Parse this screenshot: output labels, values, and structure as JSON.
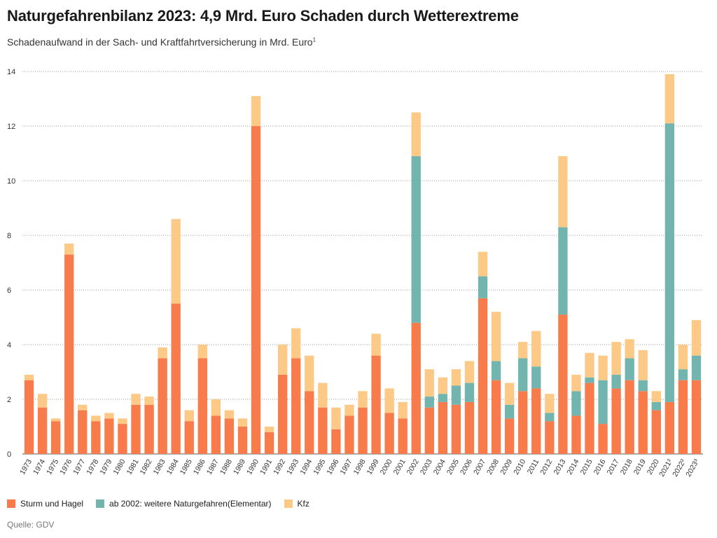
{
  "header": {
    "title": "Naturgefahrenbilanz 2023:  4,9 Mrd. Euro Schaden durch Wetterextreme",
    "subtitle": "Schadenaufwand in der Sach- und Kraftfahrtversicherung in Mrd. Euro",
    "subtitle_note": "1"
  },
  "source": "Quelle: GDV",
  "colors": {
    "sturm": "#f77b4b",
    "elementar": "#72b5ae",
    "kfz": "#fcca86",
    "grid": "#9a9a9a",
    "text": "#1a1a1a"
  },
  "chart_data": {
    "type": "bar",
    "stacked": true,
    "title": "Naturgefahrenbilanz 2023:  4,9 Mrd. Euro Schaden durch Wetterextreme",
    "ylabel": "",
    "xlabel": "",
    "ylim": [
      0,
      14
    ],
    "yticks": [
      0,
      2,
      4,
      6,
      8,
      10,
      12,
      14
    ],
    "grid": true,
    "legend_position": "bottom-left",
    "categories": [
      "1973",
      "1974",
      "1975",
      "1976",
      "1977",
      "1978",
      "1979",
      "1980",
      "1981",
      "1982",
      "1983",
      "1984",
      "1985",
      "1986",
      "1987",
      "1988",
      "1989",
      "1990",
      "1991",
      "1992",
      "1993",
      "1994",
      "1995",
      "1996",
      "1997",
      "1998",
      "1999",
      "2000",
      "2001",
      "2002",
      "2003",
      "2004",
      "2005",
      "2006",
      "2007",
      "2008",
      "2009",
      "2010",
      "2011",
      "2012",
      "2013",
      "2014",
      "2015",
      "2016",
      "2017",
      "2018",
      "2019",
      "2020",
      "2021²",
      "2022²",
      "2023³"
    ],
    "series": [
      {
        "name": "Sturm und Hagel",
        "color": "#f77b4b",
        "values": [
          2.7,
          1.7,
          1.2,
          7.3,
          1.6,
          1.2,
          1.3,
          1.1,
          1.8,
          1.8,
          3.5,
          5.5,
          1.2,
          3.5,
          1.4,
          1.3,
          1.0,
          12.0,
          0.8,
          2.9,
          3.5,
          2.3,
          1.7,
          0.9,
          1.4,
          1.7,
          3.6,
          1.5,
          1.3,
          4.8,
          1.7,
          1.9,
          1.8,
          1.9,
          5.7,
          2.7,
          1.3,
          2.3,
          2.4,
          1.2,
          5.1,
          1.4,
          2.6,
          1.1,
          2.4,
          2.7,
          2.3,
          1.6,
          1.9,
          2.7,
          2.7
        ]
      },
      {
        "name": "ab 2002: weitere Naturgefahren(Elementar)",
        "color": "#72b5ae",
        "values": [
          0,
          0,
          0,
          0,
          0,
          0,
          0,
          0,
          0,
          0,
          0,
          0,
          0,
          0,
          0,
          0,
          0,
          0,
          0,
          0,
          0,
          0,
          0,
          0,
          0,
          0,
          0,
          0,
          0,
          6.1,
          0.4,
          0.3,
          0.7,
          0.7,
          0.8,
          0.7,
          0.5,
          1.2,
          0.8,
          0.3,
          3.2,
          0.9,
          0.2,
          1.6,
          0.5,
          0.8,
          0.4,
          0.3,
          10.2,
          0.4,
          0.9
        ]
      },
      {
        "name": "Kfz",
        "color": "#fcca86",
        "values": [
          0.2,
          0.5,
          0.1,
          0.4,
          0.2,
          0.2,
          0.2,
          0.2,
          0.4,
          0.3,
          0.4,
          3.1,
          0.4,
          0.5,
          0.6,
          0.3,
          0.3,
          1.1,
          0.2,
          1.1,
          1.1,
          1.3,
          0.9,
          0.8,
          0.4,
          0.6,
          0.8,
          0.9,
          0.6,
          1.6,
          1.0,
          0.6,
          0.6,
          0.8,
          0.9,
          1.8,
          0.8,
          0.6,
          1.3,
          0.7,
          2.6,
          0.6,
          0.9,
          0.9,
          1.2,
          0.7,
          1.1,
          0.4,
          1.8,
          0.9,
          1.3
        ]
      }
    ]
  }
}
